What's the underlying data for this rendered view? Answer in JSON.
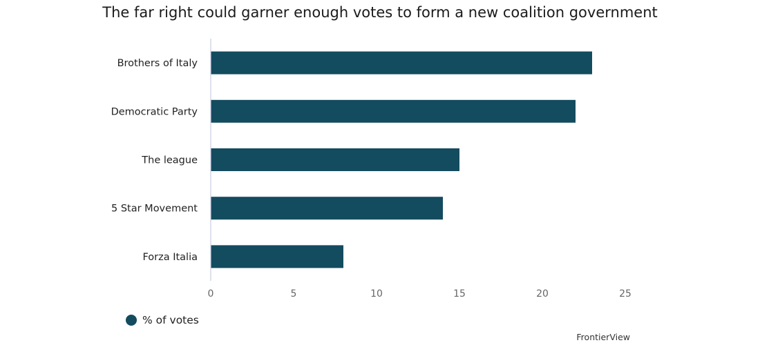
{
  "chart_data": {
    "type": "bar",
    "orientation": "horizontal",
    "title": "The far right could garner enough votes to form a new coalition government",
    "categories": [
      "Brothers of Italy",
      "Democratic Party",
      "The league",
      "5 Star Movement",
      "Forza Italia"
    ],
    "series": [
      {
        "name": "% of votes",
        "values": [
          23,
          22,
          15,
          14,
          8
        ]
      }
    ],
    "xticks": [
      0,
      5,
      10,
      15,
      20,
      25
    ],
    "xlim": [
      0,
      25
    ],
    "grid": false,
    "legend_position": "bottom-left",
    "bar_color": "#134b5f",
    "axis_color": "#c8cde0"
  },
  "source_label": "FrontierView"
}
